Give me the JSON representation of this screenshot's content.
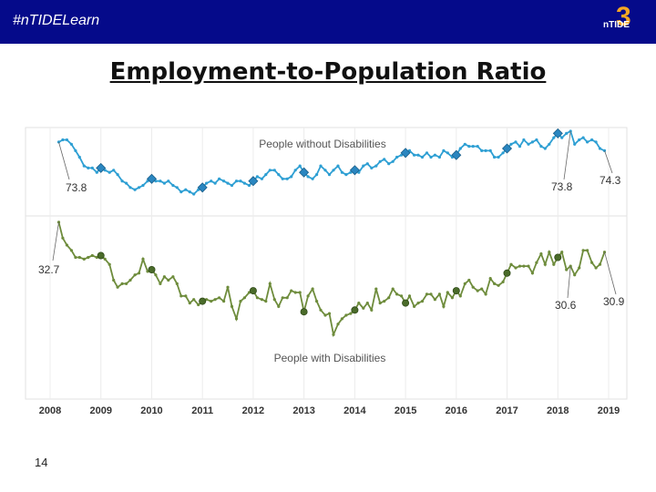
{
  "header": {
    "hashtag": "#nTIDELearn",
    "logo_text": "nTIDE",
    "logo_number": "3"
  },
  "title": "Employment-to-Population Ratio",
  "page_number": "14",
  "colors": {
    "header_bg": "#050a8a",
    "series_without": "#2e9fd3",
    "series_with": "#6e8c3c"
  },
  "chart_data": {
    "type": "line",
    "title": "Employment-to-Population Ratio",
    "x_tick_labels": [
      "2008",
      "2009",
      "2010",
      "2011",
      "2012",
      "2013",
      "2014",
      "2015",
      "2016",
      "2017",
      "2018",
      "2019"
    ],
    "xlim": [
      2008,
      2019
    ],
    "panels": [
      {
        "name": "People without Disabilities",
        "ylim": [
          71.5,
          75.2
        ],
        "color": "#2e9fd3",
        "start_label": "73.8",
        "end_labels": [
          "73.8",
          "74.3"
        ]
      },
      {
        "name": "People with Disabilities",
        "ylim": [
          25.8,
          34.0
        ],
        "color": "#6e8c3c",
        "start_label": "32.7",
        "end_labels": [
          "30.6",
          "30.9"
        ]
      }
    ],
    "series": [
      {
        "name": "People without Disabilities",
        "x": [
          2008.17,
          2008.25,
          2008.33,
          2008.42,
          2008.5,
          2008.58,
          2008.67,
          2008.75,
          2008.83,
          2008.92,
          2009.0,
          2009.08,
          2009.17,
          2009.25,
          2009.33,
          2009.42,
          2009.5,
          2009.58,
          2009.67,
          2009.75,
          2009.83,
          2009.92,
          2010.0,
          2010.08,
          2010.17,
          2010.25,
          2010.33,
          2010.42,
          2010.5,
          2010.58,
          2010.67,
          2010.75,
          2010.83,
          2010.92,
          2011.0,
          2011.08,
          2011.17,
          2011.25,
          2011.33,
          2011.42,
          2011.5,
          2011.58,
          2011.67,
          2011.75,
          2011.83,
          2011.92,
          2012.0,
          2012.08,
          2012.17,
          2012.25,
          2012.33,
          2012.42,
          2012.5,
          2012.58,
          2012.67,
          2012.75,
          2012.83,
          2012.92,
          2013.0,
          2013.08,
          2013.17,
          2013.25,
          2013.33,
          2013.42,
          2013.5,
          2013.58,
          2013.67,
          2013.75,
          2013.83,
          2013.92,
          2014.0,
          2014.08,
          2014.17,
          2014.25,
          2014.33,
          2014.42,
          2014.5,
          2014.58,
          2014.67,
          2014.75,
          2014.83,
          2014.92,
          2015.0,
          2015.08,
          2015.17,
          2015.25,
          2015.33,
          2015.42,
          2015.5,
          2015.58,
          2015.67,
          2015.75,
          2015.83,
          2015.92,
          2016.0,
          2016.08,
          2016.17,
          2016.25,
          2016.33,
          2016.42,
          2016.5,
          2016.58,
          2016.67,
          2016.75,
          2016.83,
          2016.92,
          2017.0,
          2017.08,
          2017.17,
          2017.25,
          2017.33,
          2017.42,
          2017.5,
          2017.58,
          2017.67,
          2017.75,
          2017.83,
          2017.92,
          2018.0,
          2018.08,
          2018.17,
          2018.25,
          2018.33,
          2018.42,
          2018.5,
          2018.58,
          2018.67,
          2018.75,
          2018.83,
          2018.92
        ],
        "y": [
          74.7,
          74.8,
          74.8,
          74.6,
          74.3,
          74.0,
          73.6,
          73.5,
          73.5,
          73.3,
          73.5,
          73.4,
          73.3,
          73.4,
          73.2,
          72.9,
          72.8,
          72.6,
          72.5,
          72.6,
          72.7,
          72.9,
          73.0,
          72.9,
          72.9,
          72.8,
          72.9,
          72.7,
          72.6,
          72.4,
          72.5,
          72.4,
          72.3,
          72.5,
          72.6,
          72.8,
          72.9,
          72.8,
          73.0,
          72.9,
          72.8,
          72.7,
          72.9,
          72.9,
          72.8,
          72.7,
          72.9,
          73.1,
          73.0,
          73.2,
          73.4,
          73.4,
          73.2,
          73.0,
          73.0,
          73.1,
          73.4,
          73.6,
          73.3,
          73.1,
          73.0,
          73.2,
          73.6,
          73.4,
          73.2,
          73.4,
          73.6,
          73.3,
          73.2,
          73.3,
          73.4,
          73.3,
          73.6,
          73.7,
          73.5,
          73.6,
          73.8,
          73.9,
          73.7,
          73.8,
          74.0,
          74.1,
          74.2,
          74.3,
          74.1,
          74.1,
          74.0,
          74.2,
          74.0,
          74.1,
          74.0,
          74.3,
          74.2,
          74.0,
          74.1,
          74.4,
          74.6,
          74.5,
          74.5,
          74.5,
          74.3,
          74.3,
          74.3,
          74.0,
          74.0,
          74.2,
          74.4,
          74.6,
          74.7,
          74.5,
          74.8,
          74.6,
          74.7,
          74.8,
          74.5,
          74.4,
          74.6,
          74.9,
          75.1,
          74.9,
          75.1,
          75.2,
          74.6,
          74.8,
          74.9,
          74.7,
          74.8,
          74.7,
          74.4,
          74.3
        ],
        "highlight_x": [
          2009.0,
          2010.0,
          2011.0,
          2012.0,
          2013.0,
          2014.0,
          2015.0,
          2016.0,
          2017.0,
          2018.0
        ]
      },
      {
        "name": "People with Disabilities",
        "x": [
          2008.17,
          2008.25,
          2008.33,
          2008.42,
          2008.5,
          2008.58,
          2008.67,
          2008.75,
          2008.83,
          2008.92,
          2009.0,
          2009.08,
          2009.17,
          2009.25,
          2009.33,
          2009.42,
          2009.5,
          2009.58,
          2009.67,
          2009.75,
          2009.83,
          2009.92,
          2010.0,
          2010.08,
          2010.17,
          2010.25,
          2010.33,
          2010.42,
          2010.5,
          2010.58,
          2010.67,
          2010.75,
          2010.83,
          2010.92,
          2011.0,
          2011.08,
          2011.17,
          2011.25,
          2011.33,
          2011.42,
          2011.5,
          2011.58,
          2011.67,
          2011.75,
          2011.83,
          2011.92,
          2012.0,
          2012.08,
          2012.17,
          2012.25,
          2012.33,
          2012.42,
          2012.5,
          2012.58,
          2012.67,
          2012.75,
          2012.83,
          2012.92,
          2013.0,
          2013.08,
          2013.17,
          2013.25,
          2013.33,
          2013.42,
          2013.5,
          2013.58,
          2013.67,
          2013.75,
          2013.83,
          2013.92,
          2014.0,
          2014.08,
          2014.17,
          2014.25,
          2014.33,
          2014.42,
          2014.5,
          2014.58,
          2014.67,
          2014.75,
          2014.83,
          2014.92,
          2015.0,
          2015.08,
          2015.17,
          2015.25,
          2015.33,
          2015.42,
          2015.5,
          2015.58,
          2015.67,
          2015.75,
          2015.83,
          2015.92,
          2016.0,
          2016.08,
          2016.17,
          2016.25,
          2016.33,
          2016.42,
          2016.5,
          2016.58,
          2016.67,
          2016.75,
          2016.83,
          2016.92,
          2017.0,
          2017.08,
          2017.17,
          2017.25,
          2017.33,
          2017.42,
          2017.5,
          2017.58,
          2017.67,
          2017.75,
          2017.83,
          2017.92,
          2018.0,
          2018.08,
          2018.17,
          2018.25,
          2018.33,
          2018.42,
          2018.5,
          2018.58,
          2018.67,
          2018.75,
          2018.83,
          2018.92
        ],
        "y": [
          33.9,
          33.0,
          32.6,
          32.3,
          31.9,
          31.9,
          31.8,
          31.9,
          32.0,
          31.9,
          32.0,
          31.8,
          31.5,
          30.6,
          30.2,
          30.4,
          30.4,
          30.6,
          30.9,
          31.0,
          31.8,
          31.1,
          31.2,
          30.9,
          30.4,
          30.8,
          30.6,
          30.8,
          30.4,
          29.7,
          29.7,
          29.3,
          29.5,
          29.2,
          29.4,
          29.5,
          29.4,
          29.5,
          29.6,
          29.4,
          30.2,
          29.1,
          28.4,
          29.4,
          29.6,
          29.9,
          30.0,
          29.6,
          29.5,
          29.4,
          30.4,
          29.5,
          29.1,
          29.6,
          29.6,
          30.0,
          29.9,
          29.9,
          28.8,
          29.7,
          30.1,
          29.4,
          28.9,
          28.6,
          28.7,
          27.5,
          28.1,
          28.4,
          28.6,
          28.7,
          28.9,
          29.3,
          29.0,
          29.3,
          28.9,
          30.1,
          29.3,
          29.4,
          29.6,
          30.1,
          29.8,
          29.7,
          29.3,
          29.7,
          29.1,
          29.3,
          29.4,
          29.8,
          29.8,
          29.5,
          29.8,
          29.1,
          29.9,
          29.6,
          30.0,
          29.7,
          30.4,
          30.6,
          30.2,
          30.0,
          30.1,
          29.8,
          30.7,
          30.4,
          30.3,
          30.5,
          31.0,
          31.5,
          31.3,
          31.4,
          31.4,
          31.4,
          31.0,
          31.6,
          32.1,
          31.5,
          32.2,
          31.5,
          31.9,
          32.2,
          31.2,
          31.4,
          30.9,
          31.3,
          32.3,
          32.3,
          31.6,
          31.3,
          31.5,
          32.2
        ],
        "highlight_x": [
          2009.0,
          2010.0,
          2011.0,
          2012.0,
          2013.0,
          2014.0,
          2015.0,
          2016.0,
          2017.0,
          2018.0
        ]
      }
    ]
  }
}
